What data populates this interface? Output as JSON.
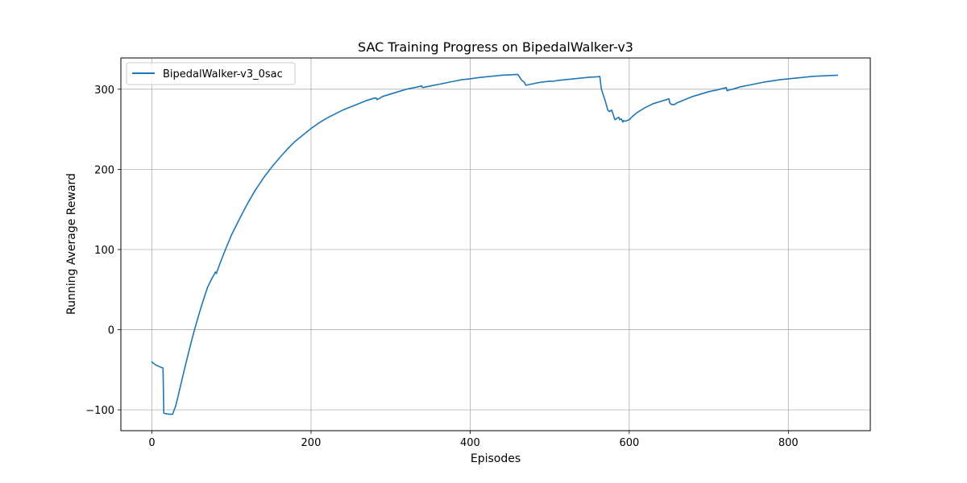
{
  "chart_data": {
    "type": "line",
    "title": "SAC Training Progress on BipedalWalker-v3",
    "xlabel": "Episodes",
    "ylabel": "Running Average Reward",
    "xlim": [
      -39,
      903
    ],
    "ylim": [
      -126,
      339
    ],
    "xticks": [
      0,
      200,
      400,
      600,
      800
    ],
    "yticks": [
      -100,
      0,
      100,
      200,
      300
    ],
    "xtick_labels": [
      "0",
      "200",
      "400",
      "600",
      "800"
    ],
    "ytick_labels": [
      "−100",
      "0",
      "100",
      "200",
      "300"
    ],
    "grid": true,
    "legend": {
      "location": "upper left"
    },
    "series": [
      {
        "name": "BipedalWalker-v3_0sac",
        "color": "#1f77b4",
        "x": [
          0,
          2,
          5,
          9,
          14,
          15,
          18,
          22,
          26,
          30,
          35,
          40,
          45,
          50,
          55,
          60,
          65,
          70,
          75,
          80,
          81,
          82,
          85,
          90,
          100,
          110,
          120,
          130,
          140,
          150,
          160,
          170,
          180,
          190,
          200,
          210,
          220,
          230,
          240,
          250,
          260,
          270,
          280,
          282,
          283,
          285,
          290,
          300,
          310,
          320,
          330,
          339,
          340,
          350,
          360,
          370,
          380,
          390,
          400,
          410,
          420,
          430,
          440,
          450,
          460,
          463,
          465,
          468,
          470,
          475,
          480,
          485,
          490,
          495,
          500,
          505,
          510,
          520,
          530,
          540,
          550,
          560,
          563,
          565,
          570,
          573,
          575,
          578,
          580,
          582,
          585,
          587,
          588,
          590,
          592,
          593,
          595,
          597,
          600,
          605,
          610,
          620,
          630,
          640,
          650,
          651,
          653,
          655,
          657,
          660,
          670,
          680,
          690,
          700,
          710,
          720,
          722,
          723,
          725,
          730,
          740,
          750,
          760,
          770,
          780,
          790,
          800,
          810,
          820,
          830,
          840,
          850,
          862
        ],
        "y": [
          -40,
          -42,
          -44,
          -46,
          -48,
          -104,
          -105,
          -105.5,
          -105.5,
          -95,
          -74,
          -53,
          -33,
          -13,
          5,
          22,
          38,
          53,
          63,
          72,
          70,
          73,
          81,
          94,
          118,
          138,
          157,
          174,
          189,
          202,
          214,
          225,
          235,
          243,
          251,
          258,
          264,
          269,
          274,
          278,
          282,
          286,
          289,
          289,
          287,
          288,
          291,
          294,
          297,
          300,
          302,
          304,
          302,
          304,
          306,
          308,
          310,
          312,
          313,
          314.5,
          315.5,
          316.5,
          317.5,
          318,
          318.5,
          314,
          311,
          309,
          305,
          306,
          307,
          308,
          309,
          309.5,
          310,
          310,
          311,
          312,
          313,
          314,
          315,
          315.5,
          316,
          300,
          285,
          274,
          272,
          274,
          268,
          262,
          264,
          265,
          262,
          263,
          259,
          261,
          260,
          261,
          262,
          267,
          271,
          277,
          282,
          285,
          288,
          283,
          281,
          281,
          281,
          283,
          287,
          291,
          294,
          297,
          299,
          301.5,
          302,
          298,
          299,
          300,
          303,
          305,
          307,
          309,
          310.5,
          312,
          313,
          314,
          315,
          316,
          316.5,
          317,
          317.5
        ]
      }
    ]
  }
}
